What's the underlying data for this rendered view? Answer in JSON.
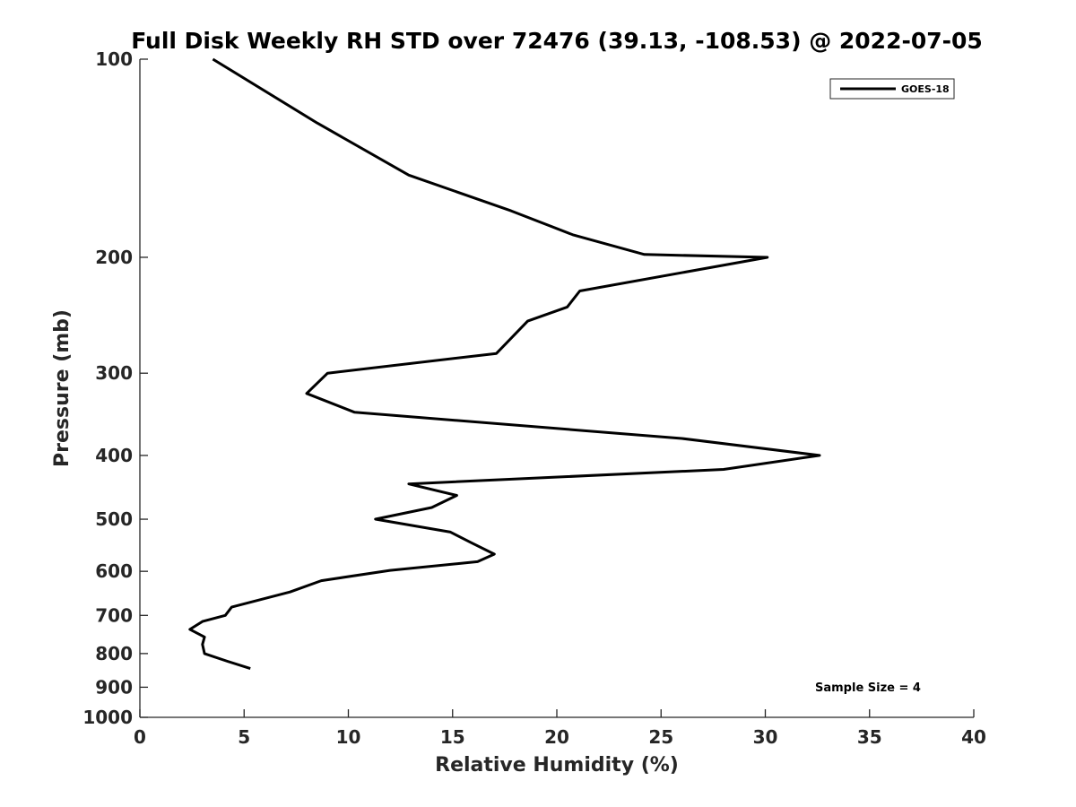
{
  "chart_data": {
    "type": "line",
    "title": "Full Disk Weekly RH STD over 72476 (39.13, -108.53) @ 2022-07-05",
    "xlabel": "Relative Humidity (%)",
    "ylabel": "Pressure (mb)",
    "xlim": [
      0,
      40
    ],
    "ylim": [
      1000,
      100
    ],
    "yscale": "log",
    "x_ticks": [
      0,
      5,
      10,
      15,
      20,
      25,
      30,
      35,
      40
    ],
    "x_tick_labels": [
      "0",
      "5",
      "10",
      "15",
      "20",
      "25",
      "30",
      "35",
      "40"
    ],
    "y_ticks": [
      100,
      200,
      300,
      400,
      500,
      600,
      700,
      800,
      900,
      1000
    ],
    "y_tick_labels": [
      "100",
      "200",
      "300",
      "400",
      "500",
      "600",
      "700",
      "800",
      "900",
      "1000"
    ],
    "legend_position": "top-right",
    "series": [
      {
        "name": "GOES-18",
        "color": "#000000",
        "points": [
          {
            "x": 3.5,
            "p": 100
          },
          {
            "x": 8.5,
            "p": 125
          },
          {
            "x": 12.9,
            "p": 150
          },
          {
            "x": 17.8,
            "p": 170
          },
          {
            "x": 20.8,
            "p": 185
          },
          {
            "x": 24.2,
            "p": 198
          },
          {
            "x": 30.1,
            "p": 200
          },
          {
            "x": 21.1,
            "p": 225
          },
          {
            "x": 20.5,
            "p": 238
          },
          {
            "x": 18.6,
            "p": 250
          },
          {
            "x": 17.1,
            "p": 280
          },
          {
            "x": 9.0,
            "p": 300
          },
          {
            "x": 8.0,
            "p": 322
          },
          {
            "x": 10.3,
            "p": 344
          },
          {
            "x": 26.0,
            "p": 377
          },
          {
            "x": 32.6,
            "p": 400
          },
          {
            "x": 28.0,
            "p": 420
          },
          {
            "x": 12.9,
            "p": 442
          },
          {
            "x": 15.2,
            "p": 460
          },
          {
            "x": 14.0,
            "p": 480
          },
          {
            "x": 11.3,
            "p": 500
          },
          {
            "x": 14.9,
            "p": 523
          },
          {
            "x": 15.9,
            "p": 543
          },
          {
            "x": 17.0,
            "p": 565
          },
          {
            "x": 16.2,
            "p": 580
          },
          {
            "x": 12.0,
            "p": 598
          },
          {
            "x": 8.7,
            "p": 620
          },
          {
            "x": 7.2,
            "p": 645
          },
          {
            "x": 4.4,
            "p": 680
          },
          {
            "x": 4.1,
            "p": 700
          },
          {
            "x": 3.0,
            "p": 715
          },
          {
            "x": 2.4,
            "p": 735
          },
          {
            "x": 3.1,
            "p": 755
          },
          {
            "x": 3.0,
            "p": 775
          },
          {
            "x": 3.1,
            "p": 800
          },
          {
            "x": 4.2,
            "p": 822
          },
          {
            "x": 5.3,
            "p": 843
          }
        ]
      }
    ],
    "annotations": [
      {
        "text": "Sample Size = 4",
        "position": "bottom-right"
      }
    ]
  }
}
